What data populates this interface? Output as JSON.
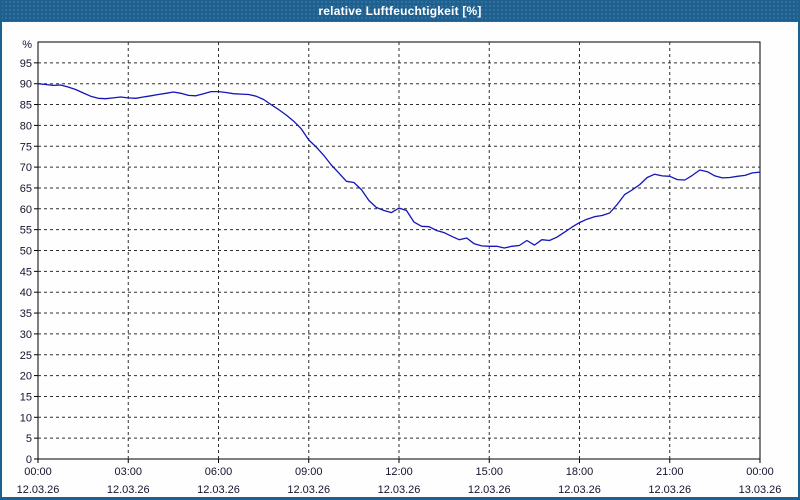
{
  "window": {
    "title": "relative Luftfeuchtigkeit [%]"
  },
  "colors": {
    "titlebar_bg": "#1e6191",
    "window_border": "#1e6191",
    "plot_bg": "#fdfefd",
    "plot_border": "#000000",
    "grid": "#2e2e2e",
    "axis_text": "#14142e",
    "title_text": "#ffffff",
    "line": "#1515b8"
  },
  "chart_data": {
    "type": "line",
    "title": "relative Luftfeuchtigkeit [%]",
    "xlabel": "",
    "ylabel": "%",
    "ylim": [
      0,
      100
    ],
    "ytick_step": 5,
    "ytick_labels": [
      "0",
      "5",
      "10",
      "15",
      "20",
      "25",
      "30",
      "35",
      "40",
      "45",
      "50",
      "55",
      "60",
      "65",
      "70",
      "75",
      "80",
      "85",
      "90",
      "95"
    ],
    "grid": "dashed",
    "legend": "none",
    "x_range_hours": [
      0,
      24
    ],
    "x_sample_interval_hours": 0.25,
    "xticks": [
      {
        "time": "00:00",
        "date": "12.03.26"
      },
      {
        "time": "03:00",
        "date": "12.03.26"
      },
      {
        "time": "06:00",
        "date": "12.03.26"
      },
      {
        "time": "09:00",
        "date": "12.03.26"
      },
      {
        "time": "12:00",
        "date": "12.03.26"
      },
      {
        "time": "15:00",
        "date": "12.03.26"
      },
      {
        "time": "18:00",
        "date": "12.03.26"
      },
      {
        "time": "21:00",
        "date": "12.03.26"
      },
      {
        "time": "00:00",
        "date": "13.03.26"
      }
    ],
    "series": [
      {
        "name": "relative Luftfeuchtigkeit",
        "unit": "%",
        "color": "#1515b8",
        "values": [
          90.0,
          89.8,
          89.6,
          89.7,
          89.2,
          88.6,
          87.8,
          87.0,
          86.5,
          86.4,
          86.6,
          86.8,
          86.6,
          86.5,
          86.8,
          87.1,
          87.4,
          87.7,
          88.0,
          87.7,
          87.2,
          87.1,
          87.6,
          88.1,
          88.1,
          87.9,
          87.6,
          87.5,
          87.4,
          87.0,
          86.2,
          85.0,
          83.8,
          82.5,
          81.0,
          79.2,
          76.5,
          74.8,
          72.8,
          70.5,
          68.6,
          66.6,
          66.3,
          64.6,
          62.0,
          60.3,
          59.6,
          59.1,
          60.2,
          59.6,
          56.8,
          55.8,
          55.7,
          54.8,
          54.3,
          53.4,
          52.6,
          53.0,
          51.6,
          51.1,
          51.0,
          51.0,
          50.6,
          51.0,
          51.2,
          52.4,
          51.3,
          52.6,
          52.4,
          53.2,
          54.4,
          55.6,
          56.7,
          57.5,
          58.1,
          58.4,
          59.0,
          61.0,
          63.4,
          64.5,
          65.8,
          67.5,
          68.3,
          67.9,
          67.8,
          67.0,
          66.9,
          68.0,
          69.3,
          68.9,
          67.9,
          67.4,
          67.5,
          67.8,
          68.0,
          68.6,
          68.8
        ]
      }
    ]
  }
}
